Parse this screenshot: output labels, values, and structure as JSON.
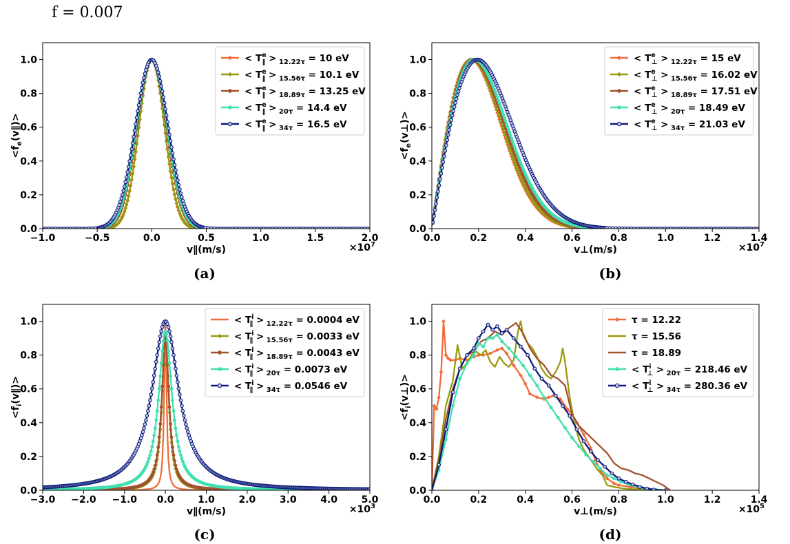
{
  "figure": {
    "title": "f = 0.007"
  },
  "chart_data": [
    {
      "id": "a",
      "type": "line",
      "caption": "(a)",
      "xlabel": "v∥(m/s)",
      "ylabel": "<fe(v∥)>",
      "ylabel_main": "<f",
      "ylabel_sub": "e",
      "ylabel_rest": "(v∥)>",
      "xlim": [
        -1.0,
        2.0
      ],
      "ylim": [
        0.0,
        1.1
      ],
      "xticks": [
        -1.0,
        -0.5,
        0.0,
        0.5,
        1.0,
        1.5,
        2.0
      ],
      "xtick_labels": [
        "−1.0",
        "−0.5",
        "0.0",
        "0.5",
        "1.0",
        "1.5",
        "2.0"
      ],
      "yticks": [
        0.0,
        0.2,
        0.4,
        0.6,
        0.8,
        1.0
      ],
      "ytick_labels": [
        "0.0",
        "0.2",
        "0.4",
        "0.6",
        "0.8",
        "1.0"
      ],
      "x_multiplier": "×10",
      "x_multiplier_exp": "7",
      "legend_position": "top-right",
      "shape": "gauss",
      "center": 0.0,
      "series": [
        {
          "name": "< T∥e >12.22τ = 10 eV",
          "legend_main": "< T",
          "legend_sup": "e",
          "legend_sub": "∥",
          "legend_sub2": "12.22τ",
          "legend_value": " = 10 eV",
          "width": 0.165,
          "color": "#f26b3a",
          "marker": "diamond"
        },
        {
          "name": "< T∥e >15.56τ = 10.1 eV",
          "legend_main": "< T",
          "legend_sup": "e",
          "legend_sub": "∥",
          "legend_sub2": "15.56τ",
          "legend_value": " = 10.1 eV",
          "width": 0.166,
          "color": "#9a9a0f",
          "marker": "diamond"
        },
        {
          "name": "< T∥e >18.89τ = 13.25 eV",
          "legend_main": "< T",
          "legend_sup": "e",
          "legend_sub": "∥",
          "legend_sub2": "18.89τ",
          "legend_value": " = 13.25 eV",
          "width": 0.19,
          "color": "#a0522d",
          "marker": "circle"
        },
        {
          "name": "< T∥e >20τ = 14.4 eV",
          "legend_main": "< T",
          "legend_sup": "e",
          "legend_sub": "∥",
          "legend_sub2": "20τ",
          "legend_value": " = 14.4 eV",
          "width": 0.198,
          "color": "#40e0b0",
          "marker": "circle"
        },
        {
          "name": "< T∥e >34τ = 16.5 eV",
          "legend_main": "< T",
          "legend_sup": "e",
          "legend_sub": "∥",
          "legend_sub2": "34τ",
          "legend_value": " = 16.5 eV",
          "width": 0.212,
          "color": "#0a1a7a",
          "marker": "open-circle"
        }
      ]
    },
    {
      "id": "b",
      "type": "line",
      "caption": "(b)",
      "xlabel": "v⊥(m/s)",
      "ylabel": "<fe(v⊥)>",
      "ylabel_main": "<f",
      "ylabel_sub": "e",
      "ylabel_rest": "(v⊥)>",
      "xlim": [
        0.0,
        1.4
      ],
      "ylim": [
        0.0,
        1.1
      ],
      "xticks": [
        0.0,
        0.2,
        0.4,
        0.6,
        0.8,
        1.0,
        1.2,
        1.4
      ],
      "xtick_labels": [
        "0.0",
        "0.2",
        "0.4",
        "0.6",
        "0.8",
        "1.0",
        "1.2",
        "1.4"
      ],
      "yticks": [
        0.0,
        0.2,
        0.4,
        0.6,
        0.8,
        1.0
      ],
      "ytick_labels": [
        "0.0",
        "0.2",
        "0.4",
        "0.6",
        "0.8",
        "1.0"
      ],
      "x_multiplier": "×10",
      "x_multiplier_exp": "7",
      "legend_position": "top-right",
      "shape": "rayleigh",
      "series": [
        {
          "name": "< T⊥e >12.22τ = 15 eV",
          "legend_main": "< T",
          "legend_sup": "e",
          "legend_sub": "⊥",
          "legend_sub2": "12.22τ",
          "legend_value": " = 15 eV",
          "peak": 0.168,
          "color": "#f26b3a",
          "marker": "diamond"
        },
        {
          "name": "< T⊥e >15.56τ = 16.02 eV",
          "legend_main": "< T",
          "legend_sup": "e",
          "legend_sub": "⊥",
          "legend_sub2": "15.56τ",
          "legend_value": " = 16.02 eV",
          "peak": 0.17,
          "color": "#9a9a0f",
          "marker": "diamond"
        },
        {
          "name": "< T⊥e >18.89τ = 17.51 eV",
          "legend_main": "< T",
          "legend_sup": "e",
          "legend_sub": "⊥",
          "legend_sub2": "18.89τ",
          "legend_value": " = 17.51 eV",
          "peak": 0.176,
          "color": "#a0522d",
          "marker": "circle"
        },
        {
          "name": "< T⊥e >20τ = 18.49 eV",
          "legend_main": "< T",
          "legend_sup": "e",
          "legend_sub": "⊥",
          "legend_sub2": "20τ",
          "legend_value": " = 18.49 eV",
          "peak": 0.182,
          "color": "#40e0b0",
          "marker": "circle"
        },
        {
          "name": "< T⊥e >34τ = 21.03 eV",
          "legend_main": "< T",
          "legend_sup": "e",
          "legend_sub": "⊥",
          "legend_sub2": "34τ",
          "legend_value": " = 21.03 eV",
          "peak": 0.195,
          "color": "#0a1a7a",
          "marker": "open-circle"
        }
      ]
    },
    {
      "id": "c",
      "type": "line",
      "caption": "(c)",
      "xlabel": "v∥(m/s)",
      "ylabel": "<fi(v∥)>",
      "ylabel_main": "<f",
      "ylabel_sub": "i",
      "ylabel_rest": "(v∥)>",
      "xlim": [
        -3.0,
        5.0
      ],
      "ylim": [
        0.0,
        1.1
      ],
      "xticks": [
        -3.0,
        -2.0,
        -1.0,
        0.0,
        1.0,
        2.0,
        3.0,
        4.0,
        5.0
      ],
      "xtick_labels": [
        "−3.0",
        "−2.0",
        "−1.0",
        "0.0",
        "1.0",
        "2.0",
        "3.0",
        "4.0",
        "5.0"
      ],
      "yticks": [
        0.0,
        0.2,
        0.4,
        0.6,
        0.8,
        1.0
      ],
      "ytick_labels": [
        "0.0",
        "0.2",
        "0.4",
        "0.6",
        "0.8",
        "1.0"
      ],
      "x_multiplier": "×10",
      "x_multiplier_exp": "3",
      "legend_position": "top-right",
      "shape": "lorentz",
      "center": 0.0,
      "series": [
        {
          "name": "< T∥i >12.22τ = 0.0004 eV",
          "legend_main": "< T",
          "legend_sup": "i",
          "legend_sub": "∥",
          "legend_sub2": "12.22τ",
          "legend_value": " = 0.0004 eV",
          "width": 0.035,
          "peak": 1.0,
          "color": "#f26b3a",
          "marker": "none"
        },
        {
          "name": "< T∥i >15.56τ = 0.0033 eV",
          "legend_main": "< T",
          "legend_sup": "i",
          "legend_sub": "∥",
          "legend_sub2": "15.56τ",
          "legend_value": " = 0.0033 eV",
          "width": 0.1,
          "peak": 0.92,
          "color": "#9a9a0f",
          "marker": "diamond"
        },
        {
          "name": "< T∥i >18.89τ = 0.0043 eV",
          "legend_main": "< T",
          "legend_sup": "i",
          "legend_sub": "∥",
          "legend_sub2": "18.89τ",
          "legend_value": " = 0.0043 eV",
          "width": 0.11,
          "peak": 0.9,
          "color": "#a0522d",
          "marker": "circle"
        },
        {
          "name": "< T∥i >20τ = 0.0073 eV",
          "legend_main": "< T",
          "legend_sup": "i",
          "legend_sub": "∥",
          "legend_sub2": "20τ",
          "legend_value": " = 0.0073 eV",
          "width": 0.2,
          "peak": 0.94,
          "color": "#40e0b0",
          "marker": "circle"
        },
        {
          "name": "< T∥i >34τ = 0.0546 eV",
          "legend_main": "< T",
          "legend_sup": "i",
          "legend_sub": "∥",
          "legend_sub2": "34τ",
          "legend_value": " = 0.0546 eV",
          "width": 0.4,
          "peak": 1.0,
          "color": "#0a1a7a",
          "marker": "open-circle"
        }
      ]
    },
    {
      "id": "d",
      "type": "line",
      "caption": "(d)",
      "xlabel": "v⊥(m/s)",
      "ylabel": "<fi(v⊥)>",
      "ylabel_main": "<f",
      "ylabel_sub": "i",
      "ylabel_rest": "(v⊥)>",
      "xlim": [
        0.0,
        1.4
      ],
      "ylim": [
        0.0,
        1.1
      ],
      "xticks": [
        0.0,
        0.2,
        0.4,
        0.6,
        0.8,
        1.0,
        1.2,
        1.4
      ],
      "xtick_labels": [
        "0.0",
        "0.2",
        "0.4",
        "0.6",
        "0.8",
        "1.0",
        "1.2",
        "1.4"
      ],
      "yticks": [
        0.0,
        0.2,
        0.4,
        0.6,
        0.8,
        1.0
      ],
      "ytick_labels": [
        "0.0",
        "0.2",
        "0.4",
        "0.6",
        "0.8",
        "1.0"
      ],
      "x_multiplier": "×10",
      "x_multiplier_exp": "5",
      "legend_position": "top-right",
      "shape": "points",
      "series": [
        {
          "name": "τ = 12.22",
          "legend_main": "τ = 12.22",
          "color": "#f26b3a",
          "marker": "diamond",
          "x": [
            0.0,
            0.01,
            0.02,
            0.03,
            0.04,
            0.05,
            0.06,
            0.07,
            0.08,
            0.1,
            0.12,
            0.15,
            0.18,
            0.2,
            0.22,
            0.25,
            0.28,
            0.3,
            0.32,
            0.35,
            0.38,
            0.4,
            0.42,
            0.45,
            0.48,
            0.5,
            0.52,
            0.55,
            0.58,
            0.6,
            0.62,
            0.65,
            0.68,
            0.7,
            0.72,
            0.75,
            0.78,
            0.8,
            0.85,
            0.9,
            0.95,
            1.0
          ],
          "y": [
            0.0,
            0.5,
            0.48,
            0.55,
            0.7,
            1.0,
            0.8,
            0.78,
            0.77,
            0.77,
            0.78,
            0.77,
            0.79,
            0.8,
            0.8,
            0.81,
            0.83,
            0.84,
            0.81,
            0.74,
            0.68,
            0.63,
            0.57,
            0.55,
            0.54,
            0.55,
            0.56,
            0.54,
            0.48,
            0.45,
            0.4,
            0.33,
            0.25,
            0.18,
            0.12,
            0.07,
            0.04,
            0.03,
            0.02,
            0.01,
            0.005,
            0.0
          ]
        },
        {
          "name": "τ = 15.56",
          "legend_main": "τ = 15.56",
          "color": "#9a9a0f",
          "marker": "none",
          "x": [
            0.0,
            0.03,
            0.06,
            0.09,
            0.11,
            0.13,
            0.15,
            0.17,
            0.19,
            0.21,
            0.23,
            0.25,
            0.27,
            0.29,
            0.31,
            0.33,
            0.35,
            0.37,
            0.38,
            0.39,
            0.41,
            0.43,
            0.45,
            0.47,
            0.49,
            0.51,
            0.53,
            0.55,
            0.56,
            0.57,
            0.59,
            0.61,
            0.63,
            0.65,
            0.67,
            0.69,
            0.71,
            0.73,
            0.75,
            0.78,
            0.82,
            0.88,
            0.95,
            1.0
          ],
          "y": [
            0.0,
            0.2,
            0.5,
            0.65,
            0.86,
            0.72,
            0.75,
            0.8,
            0.82,
            0.8,
            0.83,
            0.76,
            0.73,
            0.79,
            0.75,
            0.73,
            0.77,
            0.95,
            1.0,
            0.92,
            0.87,
            0.84,
            0.79,
            0.72,
            0.68,
            0.66,
            0.7,
            0.76,
            0.84,
            0.76,
            0.55,
            0.4,
            0.3,
            0.24,
            0.2,
            0.16,
            0.12,
            0.09,
            0.03,
            0.02,
            0.01,
            0.005,
            0.002,
            0.0
          ]
        },
        {
          "name": "τ = 18.89",
          "legend_main": "τ = 18.89",
          "color": "#a0522d",
          "marker": "none",
          "x": [
            0.0,
            0.03,
            0.06,
            0.09,
            0.12,
            0.15,
            0.18,
            0.21,
            0.24,
            0.27,
            0.3,
            0.33,
            0.36,
            0.39,
            0.42,
            0.45,
            0.48,
            0.51,
            0.54,
            0.57,
            0.6,
            0.63,
            0.66,
            0.69,
            0.72,
            0.75,
            0.78,
            0.81,
            0.84,
            0.87,
            0.9,
            0.93,
            0.96,
            0.99,
            1.02
          ],
          "y": [
            0.0,
            0.18,
            0.42,
            0.6,
            0.72,
            0.8,
            0.82,
            0.88,
            0.9,
            0.94,
            0.92,
            0.96,
            0.99,
            0.93,
            0.84,
            0.78,
            0.74,
            0.68,
            0.66,
            0.62,
            0.45,
            0.38,
            0.34,
            0.3,
            0.26,
            0.22,
            0.16,
            0.13,
            0.12,
            0.1,
            0.09,
            0.07,
            0.05,
            0.03,
            0.0
          ]
        },
        {
          "name": "< T⊥i >20τ = 218.46 eV",
          "legend_main": "< T",
          "legend_sup": "i",
          "legend_sub": "⊥",
          "legend_sub2": "20τ",
          "legend_value": " = 218.46 eV",
          "color": "#40e0b0",
          "marker": "circle",
          "x": [
            0.0,
            0.03,
            0.06,
            0.09,
            0.12,
            0.15,
            0.18,
            0.2,
            0.22,
            0.24,
            0.26,
            0.28,
            0.3,
            0.33,
            0.36,
            0.39,
            0.42,
            0.45,
            0.48,
            0.51,
            0.54,
            0.57,
            0.6,
            0.63,
            0.66,
            0.69,
            0.72,
            0.75,
            0.78,
            0.81,
            0.84,
            0.87,
            0.9,
            0.93,
            0.96,
            1.0
          ],
          "y": [
            0.0,
            0.12,
            0.3,
            0.5,
            0.66,
            0.75,
            0.8,
            0.87,
            0.85,
            0.9,
            0.9,
            0.92,
            0.88,
            0.84,
            0.79,
            0.74,
            0.68,
            0.62,
            0.55,
            0.49,
            0.43,
            0.37,
            0.31,
            0.26,
            0.21,
            0.17,
            0.13,
            0.09,
            0.07,
            0.05,
            0.035,
            0.025,
            0.015,
            0.008,
            0.003,
            0.0
          ]
        },
        {
          "name": "< T⊥i >34τ = 280.36 eV",
          "legend_main": "< T",
          "legend_sup": "i",
          "legend_sub": "⊥",
          "legend_sub2": "34τ",
          "legend_value": " = 280.36 eV",
          "color": "#0a1a7a",
          "marker": "open-circle",
          "x": [
            0.0,
            0.03,
            0.06,
            0.09,
            0.12,
            0.15,
            0.18,
            0.2,
            0.22,
            0.24,
            0.26,
            0.28,
            0.3,
            0.32,
            0.35,
            0.38,
            0.41,
            0.44,
            0.47,
            0.5,
            0.53,
            0.56,
            0.59,
            0.62,
            0.65,
            0.68,
            0.71,
            0.74,
            0.77,
            0.8,
            0.83,
            0.86,
            0.89,
            0.92,
            0.95,
            1.0
          ],
          "y": [
            0.0,
            0.15,
            0.36,
            0.58,
            0.72,
            0.8,
            0.84,
            0.9,
            0.94,
            0.98,
            0.95,
            0.97,
            0.93,
            0.95,
            0.9,
            0.85,
            0.8,
            0.72,
            0.66,
            0.62,
            0.56,
            0.5,
            0.44,
            0.36,
            0.29,
            0.23,
            0.18,
            0.14,
            0.1,
            0.07,
            0.05,
            0.035,
            0.02,
            0.01,
            0.004,
            0.0
          ]
        }
      ]
    }
  ]
}
